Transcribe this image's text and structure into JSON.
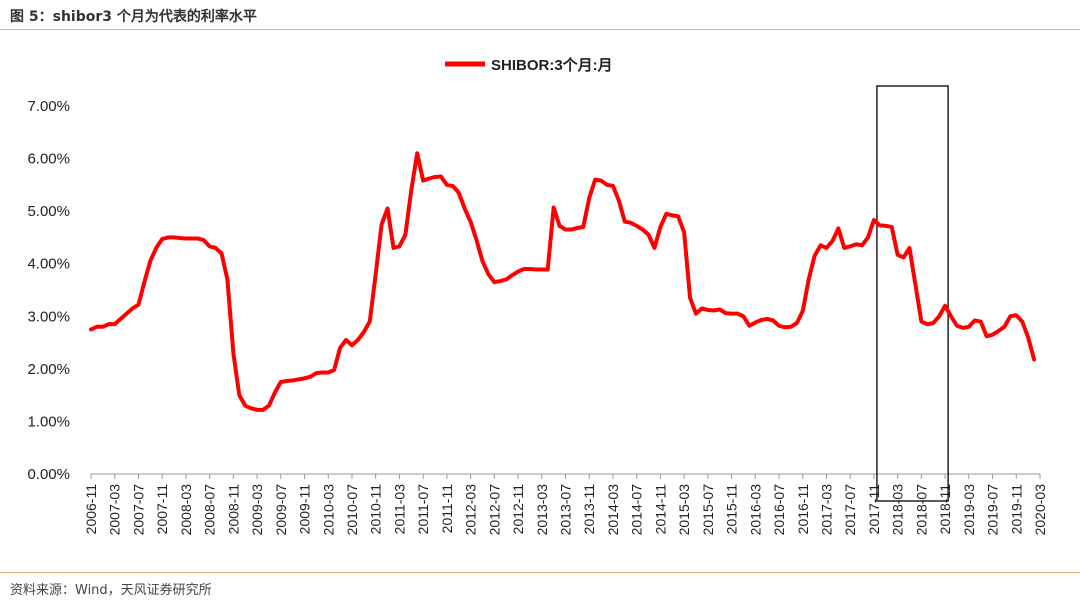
{
  "figure": {
    "title": "图 5：shibor3 个月为代表的利率水平",
    "source": "资料来源：Wind，天风证券研究所"
  },
  "colors": {
    "series": "#ff0000",
    "rule": "#e9b27a",
    "box": "#000000"
  },
  "chart_data": {
    "type": "line",
    "title": "",
    "xlabel": "",
    "ylabel": "",
    "ylim": [
      0,
      0.07
    ],
    "yticks": [
      "0.00%",
      "1.00%",
      "2.00%",
      "3.00%",
      "4.00%",
      "5.00%",
      "6.00%",
      "7.00%"
    ],
    "legend_position": "top-center",
    "grid": false,
    "x_tick_labels": [
      "2006-11",
      "2007-03",
      "2007-07",
      "2007-11",
      "2008-03",
      "2008-07",
      "2008-11",
      "2009-03",
      "2009-07",
      "2009-11",
      "2010-03",
      "2010-07",
      "2010-11",
      "2011-03",
      "2011-07",
      "2011-11",
      "2012-03",
      "2012-07",
      "2012-11",
      "2013-03",
      "2013-07",
      "2013-11",
      "2014-03",
      "2014-07",
      "2014-11",
      "2015-03",
      "2015-07",
      "2015-11",
      "2016-03",
      "2016-07",
      "2016-11",
      "2017-03",
      "2017-07",
      "2017-11",
      "2018-03",
      "2018-07",
      "2018-11",
      "2019-03",
      "2019-07",
      "2019-11",
      "2020-03"
    ],
    "highlight_box": {
      "x_start": "2017-11",
      "x_end": "2018-11"
    },
    "series": [
      {
        "name": "SHIBOR:3个月:月",
        "color": "#ff0000",
        "points": [
          [
            "2006-11",
            2.75
          ],
          [
            "2006-12",
            2.8
          ],
          [
            "2007-01",
            2.8
          ],
          [
            "2007-02",
            2.85
          ],
          [
            "2007-03",
            2.85
          ],
          [
            "2007-04",
            2.95
          ],
          [
            "2007-05",
            3.05
          ],
          [
            "2007-06",
            3.15
          ],
          [
            "2007-07",
            3.22
          ],
          [
            "2007-08",
            3.65
          ],
          [
            "2007-09",
            4.05
          ],
          [
            "2007-10",
            4.3
          ],
          [
            "2007-11",
            4.47
          ],
          [
            "2007-12",
            4.5
          ],
          [
            "2008-01",
            4.5
          ],
          [
            "2008-02",
            4.49
          ],
          [
            "2008-03",
            4.48
          ],
          [
            "2008-04",
            4.48
          ],
          [
            "2008-05",
            4.48
          ],
          [
            "2008-06",
            4.45
          ],
          [
            "2008-07",
            4.33
          ],
          [
            "2008-08",
            4.3
          ],
          [
            "2008-09",
            4.2
          ],
          [
            "2008-10",
            3.7
          ],
          [
            "2008-11",
            2.3
          ],
          [
            "2008-12",
            1.5
          ],
          [
            "2009-01",
            1.3
          ],
          [
            "2009-02",
            1.25
          ],
          [
            "2009-03",
            1.22
          ],
          [
            "2009-04",
            1.22
          ],
          [
            "2009-05",
            1.3
          ],
          [
            "2009-06",
            1.55
          ],
          [
            "2009-07",
            1.75
          ],
          [
            "2009-08",
            1.77
          ],
          [
            "2009-09",
            1.78
          ],
          [
            "2009-10",
            1.8
          ],
          [
            "2009-11",
            1.82
          ],
          [
            "2009-12",
            1.85
          ],
          [
            "2010-01",
            1.92
          ],
          [
            "2010-02",
            1.93
          ],
          [
            "2010-03",
            1.93
          ],
          [
            "2010-04",
            1.98
          ],
          [
            "2010-05",
            2.4
          ],
          [
            "2010-06",
            2.55
          ],
          [
            "2010-07",
            2.45
          ],
          [
            "2010-08",
            2.55
          ],
          [
            "2010-09",
            2.7
          ],
          [
            "2010-10",
            2.9
          ],
          [
            "2010-11",
            3.8
          ],
          [
            "2010-12",
            4.75
          ],
          [
            "2011-01",
            5.05
          ],
          [
            "2011-02",
            4.3
          ],
          [
            "2011-03",
            4.33
          ],
          [
            "2011-04",
            4.55
          ],
          [
            "2011-05",
            5.4
          ],
          [
            "2011-06",
            6.1
          ],
          [
            "2011-07",
            5.58
          ],
          [
            "2011-08",
            5.62
          ],
          [
            "2011-09",
            5.65
          ],
          [
            "2011-10",
            5.66
          ],
          [
            "2011-11",
            5.5
          ],
          [
            "2011-12",
            5.48
          ],
          [
            "2012-01",
            5.35
          ],
          [
            "2012-02",
            5.05
          ],
          [
            "2012-03",
            4.8
          ],
          [
            "2012-04",
            4.45
          ],
          [
            "2012-05",
            4.05
          ],
          [
            "2012-06",
            3.8
          ],
          [
            "2012-07",
            3.65
          ],
          [
            "2012-08",
            3.67
          ],
          [
            "2012-09",
            3.7
          ],
          [
            "2012-10",
            3.78
          ],
          [
            "2012-11",
            3.85
          ],
          [
            "2012-12",
            3.9
          ],
          [
            "2013-01",
            3.9
          ],
          [
            "2013-02",
            3.89
          ],
          [
            "2013-03",
            3.89
          ],
          [
            "2013-04",
            3.89
          ],
          [
            "2013-05",
            5.07
          ],
          [
            "2013-06",
            4.72
          ],
          [
            "2013-07",
            4.65
          ],
          [
            "2013-08",
            4.65
          ],
          [
            "2013-09",
            4.68
          ],
          [
            "2013-10",
            4.7
          ],
          [
            "2013-11",
            5.25
          ],
          [
            "2013-12",
            5.6
          ],
          [
            "2014-01",
            5.58
          ],
          [
            "2014-02",
            5.5
          ],
          [
            "2014-03",
            5.48
          ],
          [
            "2014-04",
            5.2
          ],
          [
            "2014-05",
            4.8
          ],
          [
            "2014-06",
            4.78
          ],
          [
            "2014-07",
            4.72
          ],
          [
            "2014-08",
            4.65
          ],
          [
            "2014-09",
            4.55
          ],
          [
            "2014-10",
            4.3
          ],
          [
            "2014-11",
            4.7
          ],
          [
            "2014-12",
            4.95
          ],
          [
            "2015-01",
            4.92
          ],
          [
            "2015-02",
            4.9
          ],
          [
            "2015-03",
            4.6
          ],
          [
            "2015-04",
            3.35
          ],
          [
            "2015-05",
            3.05
          ],
          [
            "2015-06",
            3.15
          ],
          [
            "2015-07",
            3.12
          ],
          [
            "2015-08",
            3.11
          ],
          [
            "2015-09",
            3.13
          ],
          [
            "2015-10",
            3.06
          ],
          [
            "2015-11",
            3.05
          ],
          [
            "2015-12",
            3.05
          ],
          [
            "2016-01",
            3.0
          ],
          [
            "2016-02",
            2.82
          ],
          [
            "2016-03",
            2.88
          ],
          [
            "2016-04",
            2.93
          ],
          [
            "2016-05",
            2.95
          ],
          [
            "2016-06",
            2.92
          ],
          [
            "2016-07",
            2.82
          ],
          [
            "2016-08",
            2.79
          ],
          [
            "2016-09",
            2.8
          ],
          [
            "2016-10",
            2.87
          ],
          [
            "2016-11",
            3.1
          ],
          [
            "2016-12",
            3.7
          ],
          [
            "2017-01",
            4.15
          ],
          [
            "2017-02",
            4.35
          ],
          [
            "2017-03",
            4.3
          ],
          [
            "2017-04",
            4.43
          ],
          [
            "2017-05",
            4.67
          ],
          [
            "2017-06",
            4.3
          ],
          [
            "2017-07",
            4.33
          ],
          [
            "2017-08",
            4.37
          ],
          [
            "2017-09",
            4.35
          ],
          [
            "2017-10",
            4.5
          ],
          [
            "2017-11",
            4.83
          ],
          [
            "2017-12",
            4.73
          ],
          [
            "2018-01",
            4.72
          ],
          [
            "2018-02",
            4.7
          ],
          [
            "2018-03",
            4.17
          ],
          [
            "2018-04",
            4.12
          ],
          [
            "2018-05",
            4.3
          ],
          [
            "2018-06",
            3.6
          ],
          [
            "2018-07",
            2.9
          ],
          [
            "2018-08",
            2.85
          ],
          [
            "2018-09",
            2.87
          ],
          [
            "2018-10",
            3.0
          ],
          [
            "2018-11",
            3.2
          ],
          [
            "2018-12",
            3.0
          ],
          [
            "2019-01",
            2.82
          ],
          [
            "2019-02",
            2.78
          ],
          [
            "2019-03",
            2.8
          ],
          [
            "2019-04",
            2.92
          ],
          [
            "2019-05",
            2.9
          ],
          [
            "2019-06",
            2.62
          ],
          [
            "2019-07",
            2.65
          ],
          [
            "2019-08",
            2.72
          ],
          [
            "2019-09",
            2.8
          ],
          [
            "2019-10",
            3.0
          ],
          [
            "2019-11",
            3.02
          ],
          [
            "2019-12",
            2.9
          ],
          [
            "2020-01",
            2.6
          ],
          [
            "2020-02",
            2.18
          ]
        ]
      }
    ]
  }
}
